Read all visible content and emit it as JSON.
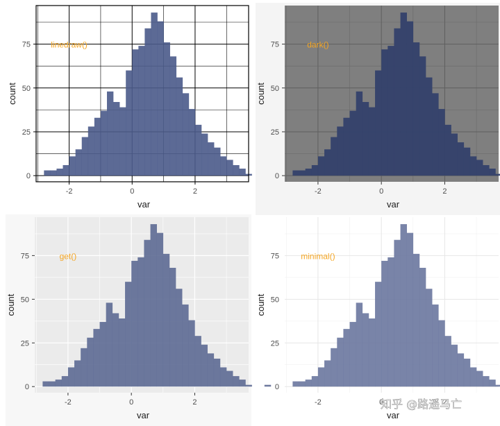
{
  "chart_data": [
    {
      "type": "bar",
      "theme": "linedraw",
      "annotation": "linedraw()",
      "annotation_color": "#f5a623",
      "xlabel": "var",
      "ylabel": "count",
      "xticks": [
        "-2",
        "0",
        "2"
      ],
      "yticks": [
        "0",
        "25",
        "50",
        "75"
      ],
      "bin_width": 0.2,
      "bin_start": -2.8,
      "counts": [
        3,
        3,
        4,
        6,
        11,
        15,
        22,
        28,
        33,
        37,
        48,
        42,
        39,
        60,
        72,
        74,
        84,
        93,
        88,
        76,
        68,
        56,
        47,
        38,
        29,
        24,
        19,
        16,
        11,
        9,
        6,
        4,
        1,
        0,
        0,
        1
      ],
      "bar_color": "#4a5a89",
      "panel_background": "#ffffff",
      "grid": "black"
    },
    {
      "type": "bar",
      "theme": "dark",
      "annotation": "dark()",
      "annotation_color": "#f5a623",
      "xlabel": "var",
      "ylabel": "count",
      "xticks": [
        "-2",
        "0",
        "2"
      ],
      "yticks": [
        "0",
        "25",
        "50",
        "75"
      ],
      "bin_width": 0.2,
      "bin_start": -2.8,
      "counts": [
        3,
        3,
        4,
        6,
        11,
        15,
        22,
        28,
        33,
        37,
        48,
        42,
        39,
        60,
        72,
        74,
        84,
        93,
        88,
        76,
        68,
        56,
        47,
        38,
        29,
        24,
        19,
        16,
        11,
        9,
        6,
        4,
        1,
        0,
        0,
        1
      ],
      "bar_color": "#34416b",
      "panel_background": "#7f7f7f",
      "grid": "grey"
    },
    {
      "type": "bar",
      "theme": "get",
      "annotation": "get()",
      "annotation_color": "#f5a623",
      "xlabel": "var",
      "ylabel": "count",
      "xticks": [
        "-2",
        "0",
        "2"
      ],
      "yticks": [
        "0",
        "25",
        "50",
        "75"
      ],
      "bin_width": 0.2,
      "bin_start": -2.8,
      "counts": [
        3,
        3,
        4,
        6,
        11,
        15,
        22,
        28,
        33,
        37,
        48,
        42,
        39,
        60,
        72,
        74,
        84,
        93,
        88,
        76,
        68,
        56,
        47,
        38,
        29,
        24,
        19,
        16,
        11,
        9,
        6,
        4,
        1,
        0,
        0,
        1
      ],
      "bar_color": "#5d6a94",
      "panel_background": "#ebebeb",
      "grid": "white"
    },
    {
      "type": "bar",
      "theme": "minimal",
      "annotation": "minimal()",
      "annotation_color": "#f5a623",
      "xlabel": "var",
      "ylabel": "count",
      "xticks": [
        "-2",
        "0",
        "2"
      ],
      "yticks": [
        "0",
        "25",
        "50",
        "75"
      ],
      "bin_width": 0.2,
      "bin_start": -2.8,
      "counts": [
        3,
        3,
        4,
        6,
        11,
        15,
        22,
        28,
        33,
        37,
        48,
        42,
        39,
        60,
        72,
        74,
        84,
        93,
        88,
        76,
        68,
        56,
        47,
        38,
        29,
        24,
        19,
        16,
        11,
        9,
        6,
        4,
        1,
        0,
        0,
        1
      ],
      "bar_color": "#6a779f",
      "panel_background": "#ffffff",
      "grid": "light"
    }
  ],
  "watermark": "知乎 @路遥马亡"
}
